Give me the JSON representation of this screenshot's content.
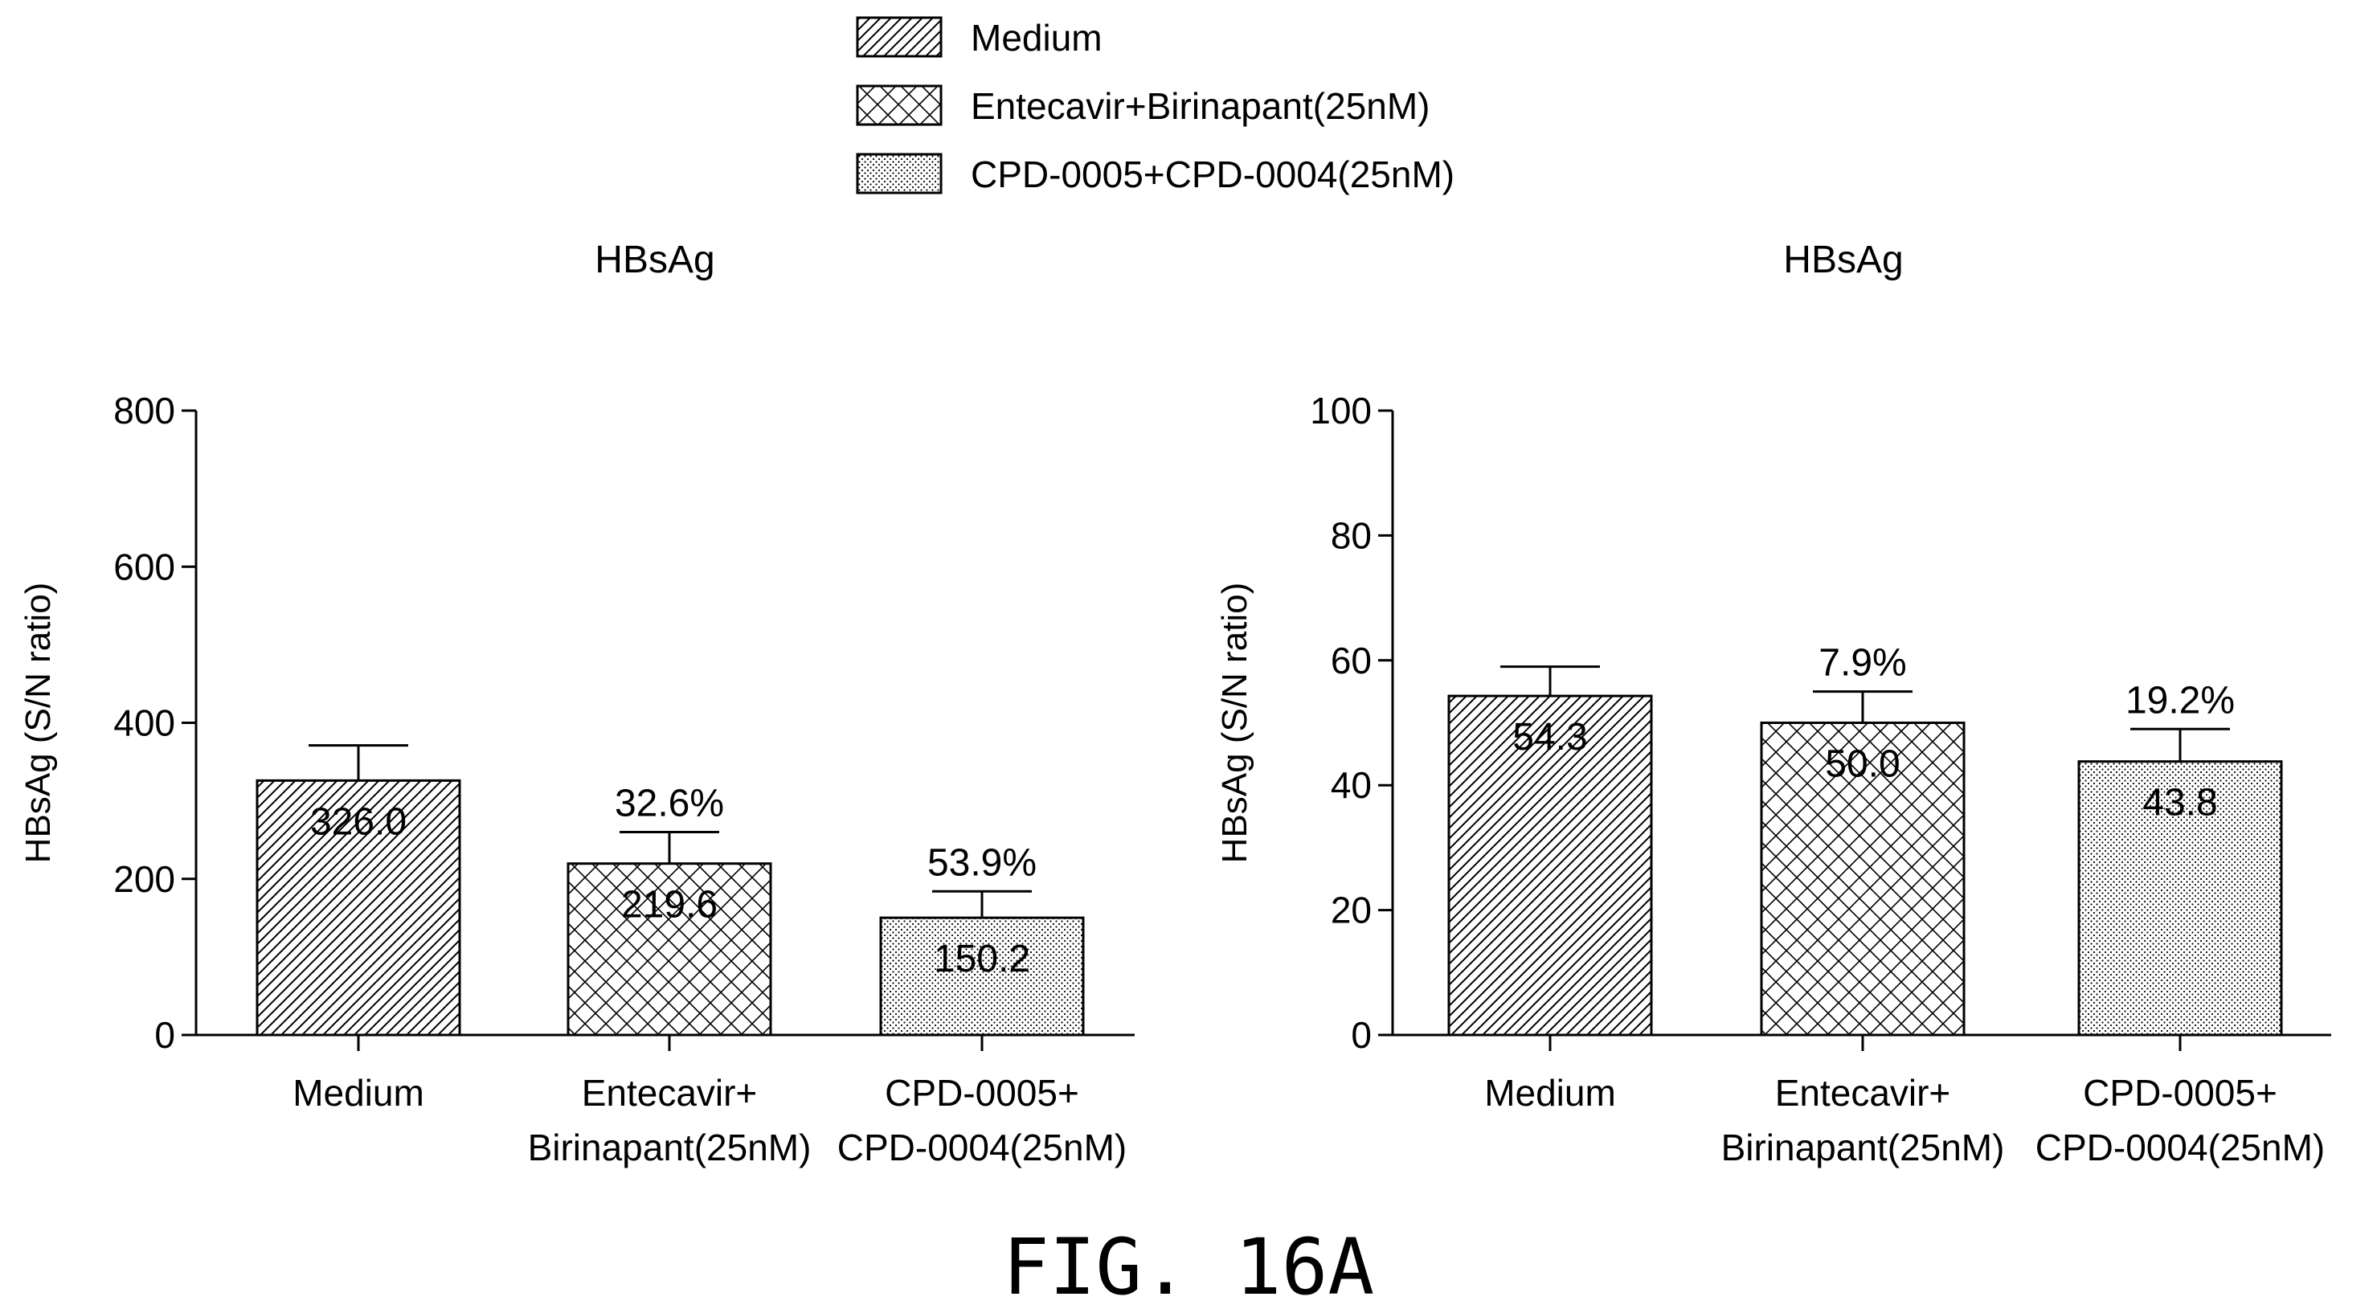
{
  "figure": {
    "caption": "FIG. 16A"
  },
  "legend": {
    "placement": "top-center",
    "entries": [
      {
        "label": "Medium",
        "pattern": "diagonal-hatch"
      },
      {
        "label": "Entecavir+Birinapant(25nM)",
        "pattern": "cross-hatch"
      },
      {
        "label": "CPD-0005+CPD-0004(25nM)",
        "pattern": "dots"
      }
    ]
  },
  "chart_data": [
    {
      "type": "bar",
      "title": "HBsAg",
      "ylabel": "HBsAg (S/N ratio)",
      "xlabel": "",
      "ylim": [
        0,
        800
      ],
      "yticks": [
        0,
        200,
        400,
        600,
        800
      ],
      "categories": [
        [
          "Medium"
        ],
        [
          "Entecavir+",
          "Birinapant(25nM)"
        ],
        [
          "CPD-0005+",
          "CPD-0004(25nM)"
        ]
      ],
      "patterns": [
        "diagonal-hatch",
        "cross-hatch",
        "dots"
      ],
      "values": [
        326.0,
        219.6,
        150.2
      ],
      "value_labels": [
        "326.0",
        "219.6",
        "150.2"
      ],
      "error_upper": [
        371,
        260,
        184
      ],
      "annotations": [
        "",
        "32.6%",
        "53.9%"
      ],
      "grid": false
    },
    {
      "type": "bar",
      "title": "HBsAg",
      "ylabel": "HBsAg (S/N ratio)",
      "xlabel": "",
      "ylim": [
        0,
        100
      ],
      "yticks": [
        0,
        20,
        40,
        60,
        80,
        100
      ],
      "categories": [
        [
          "Medium"
        ],
        [
          "Entecavir+",
          "Birinapant(25nM)"
        ],
        [
          "CPD-0005+",
          "CPD-0004(25nM)"
        ]
      ],
      "patterns": [
        "diagonal-hatch",
        "cross-hatch",
        "dots"
      ],
      "values": [
        54.3,
        50.0,
        43.8
      ],
      "value_labels": [
        "54.3",
        "50.0",
        "43.8"
      ],
      "error_upper": [
        59,
        55,
        49
      ],
      "annotations": [
        "",
        "7.9%",
        "19.2%"
      ],
      "grid": false
    }
  ]
}
